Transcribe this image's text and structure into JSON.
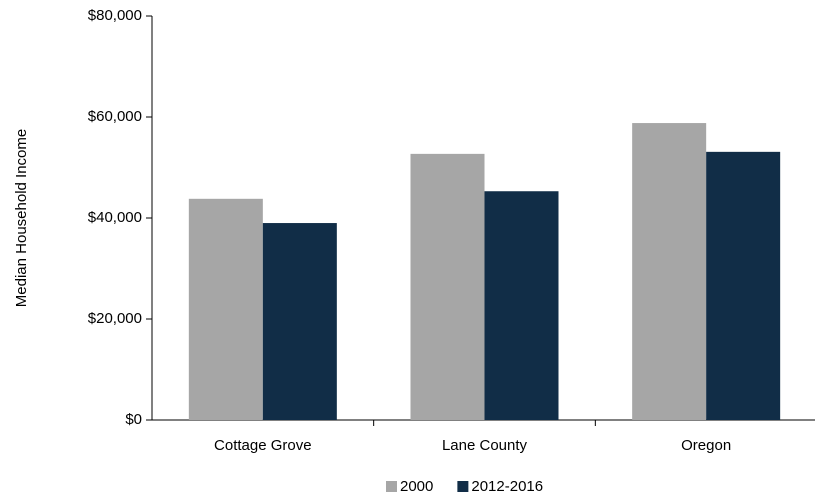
{
  "chart_data": {
    "type": "bar",
    "y_label": "Median Household Income",
    "categories": [
      "Cottage Grove",
      "Lane County",
      "Oregon"
    ],
    "series": [
      {
        "name": "2000",
        "color": "#a6a6a6",
        "values": [
          43800,
          52700,
          58800
        ]
      },
      {
        "name": "2012-2016",
        "color": "#112d47",
        "values": [
          39000,
          45300,
          53100
        ]
      }
    ],
    "ylim": [
      0,
      80000
    ],
    "yticks": [
      {
        "value": 0,
        "label": "$0"
      },
      {
        "value": 20000,
        "label": "$20,000"
      },
      {
        "value": 40000,
        "label": "$40,000"
      },
      {
        "value": 60000,
        "label": "$60,000"
      },
      {
        "value": 80000,
        "label": "$80,000"
      }
    ],
    "legend": "bottom"
  }
}
